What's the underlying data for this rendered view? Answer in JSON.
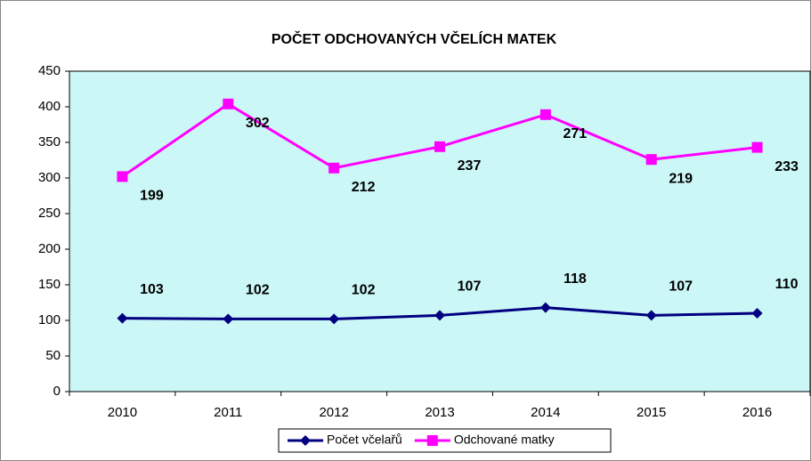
{
  "chart_data": {
    "type": "line",
    "stacked": true,
    "title": "POČET ODCHOVANÝCH VČELÍCH MATEK",
    "categories": [
      "2010",
      "2011",
      "2012",
      "2013",
      "2014",
      "2015",
      "2016"
    ],
    "series": [
      {
        "name": "Počet včelařů",
        "color": "#000080",
        "marker": "diamond",
        "values": [
          103,
          102,
          102,
          107,
          118,
          107,
          110
        ]
      },
      {
        "name": "Odchované matky",
        "color": "#ff00ff",
        "marker": "square",
        "values": [
          199,
          302,
          212,
          237,
          271,
          219,
          233
        ]
      }
    ],
    "ylim": [
      0,
      450
    ],
    "yticks": [
      0,
      50,
      100,
      150,
      200,
      250,
      300,
      350,
      400,
      450
    ],
    "grid": false,
    "legend": "bottom",
    "plot_background": "#ccf7f7"
  }
}
